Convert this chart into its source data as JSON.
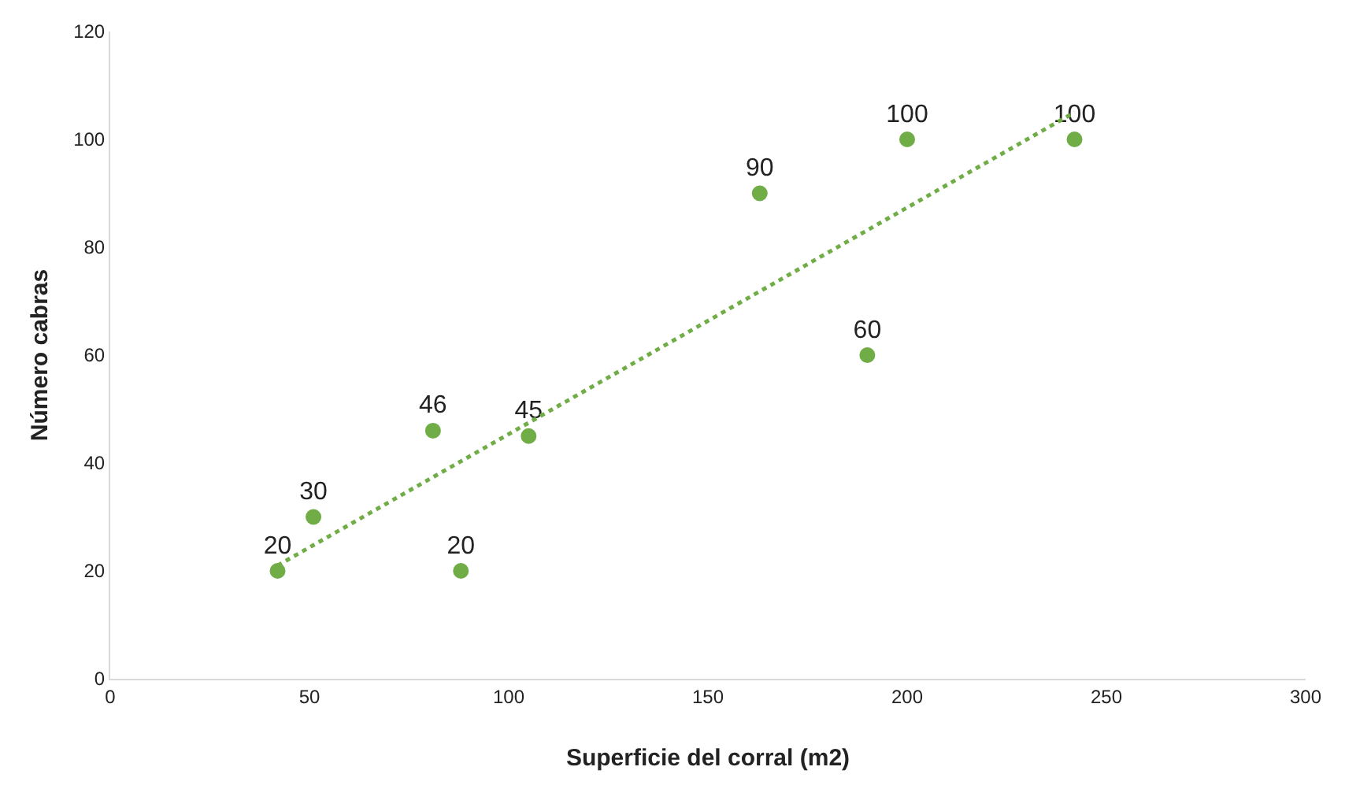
{
  "chart_data": {
    "type": "scatter",
    "xlabel": "Superficie del corral (m2)",
    "ylabel": "Número cabras",
    "xlim": [
      0,
      300
    ],
    "xticks": [
      0,
      50,
      100,
      150,
      200,
      250,
      300
    ],
    "ylim": [
      0,
      120
    ],
    "yticks": [
      0,
      20,
      40,
      60,
      80,
      100,
      120
    ],
    "series": [
      {
        "color": "#70ad47",
        "marker": "circle",
        "x": [
          42,
          51,
          81,
          88,
          105,
          163,
          190,
          200,
          242
        ],
        "values": [
          20,
          30,
          46,
          20,
          45,
          90,
          60,
          100,
          100
        ],
        "value_labels": [
          "20",
          "30",
          "46",
          "20",
          "45",
          "90",
          "60",
          "100",
          "100"
        ]
      },
      {
        "type": "line",
        "color": "#70ad47",
        "marker": "none",
        "line_style": "dotted",
        "x": [
          42,
          242
        ],
        "values": [
          21,
          105
        ]
      }
    ]
  }
}
